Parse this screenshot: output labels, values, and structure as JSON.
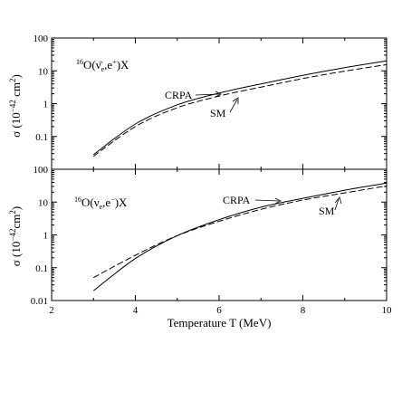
{
  "chart_data": [
    {
      "type": "line",
      "panel": "top",
      "process_label": "16O(ν̄e,e+)X",
      "ylabel": "σ (10⁻⁴² cm²)",
      "yscale": "log",
      "xlim": [
        2,
        10
      ],
      "ylim": [
        0.01,
        100
      ],
      "x_ticks": [],
      "y_ticks": [
        "0.1",
        "1",
        "10",
        "100"
      ],
      "series": [
        {
          "name": "CRPA",
          "style": "solid",
          "points": [
            [
              3,
              0.028
            ],
            [
              4,
              0.24
            ],
            [
              5,
              0.92
            ],
            [
              6,
              2.1
            ],
            [
              7,
              4.0
            ],
            [
              8,
              7.3
            ],
            [
              9,
              12.5
            ],
            [
              10,
              20.0
            ]
          ]
        },
        {
          "name": "SM",
          "style": "dashed",
          "points": [
            [
              3,
              0.025
            ],
            [
              4,
              0.2
            ],
            [
              5,
              0.75
            ],
            [
              6,
              1.7
            ],
            [
              7,
              3.2
            ],
            [
              8,
              5.8
            ],
            [
              9,
              9.8
            ],
            [
              10,
              15.5
            ]
          ]
        }
      ]
    },
    {
      "type": "line",
      "panel": "bottom",
      "process_label": "16O(νe,e−)X",
      "ylabel": "σ (10⁻⁴² cm²)",
      "xlabel": "Temperature  T (MeV)",
      "yscale": "log",
      "xlim": [
        2,
        10
      ],
      "ylim": [
        0.01,
        100
      ],
      "x_ticks": [
        "2",
        "4",
        "6",
        "8",
        "10"
      ],
      "y_ticks": [
        "0.01",
        "0.1",
        "1",
        "10",
        "100"
      ],
      "series": [
        {
          "name": "CRPA",
          "style": "solid",
          "points": [
            [
              3,
              0.02
            ],
            [
              4,
              0.19
            ],
            [
              5,
              0.95
            ],
            [
              6,
              2.9
            ],
            [
              7,
              7.0
            ],
            [
              8,
              13.0
            ],
            [
              9,
              23.0
            ],
            [
              10,
              38.0
            ]
          ]
        },
        {
          "name": "SM",
          "style": "dashed",
          "points": [
            [
              3,
              0.05
            ],
            [
              4,
              0.24
            ],
            [
              5,
              0.95
            ],
            [
              6,
              2.6
            ],
            [
              7,
              6.0
            ],
            [
              8,
              11.5
            ],
            [
              9,
              19.0
            ],
            [
              10,
              31.0
            ]
          ]
        }
      ]
    }
  ]
}
